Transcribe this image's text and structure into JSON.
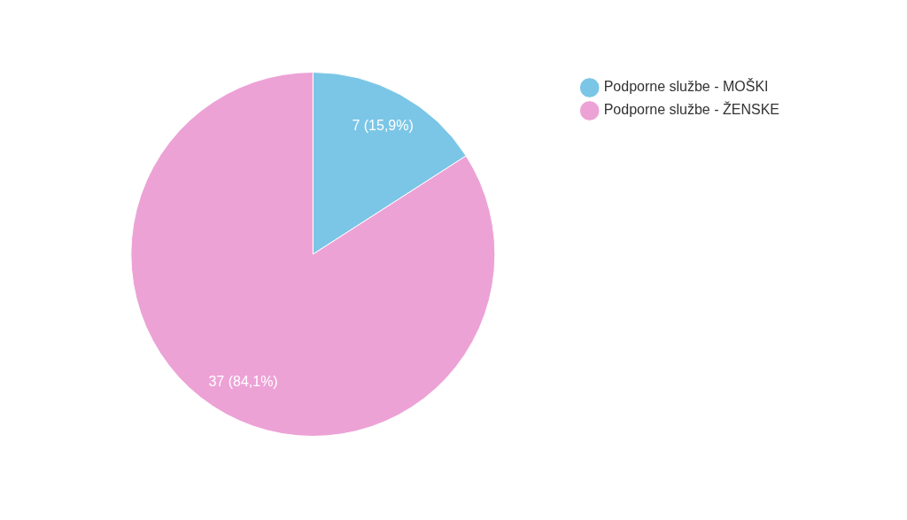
{
  "chart_data": {
    "type": "pie",
    "categories": [
      "Podporne službe - MOŠKI",
      "Podporne službe - ŽENSKE"
    ],
    "values": [
      7,
      37
    ],
    "colors": [
      "#7bc6e6",
      "#eda2d6"
    ],
    "value_labels": [
      "7 (15,9%)",
      "37 (84,1%)"
    ],
    "legend": "top right"
  }
}
